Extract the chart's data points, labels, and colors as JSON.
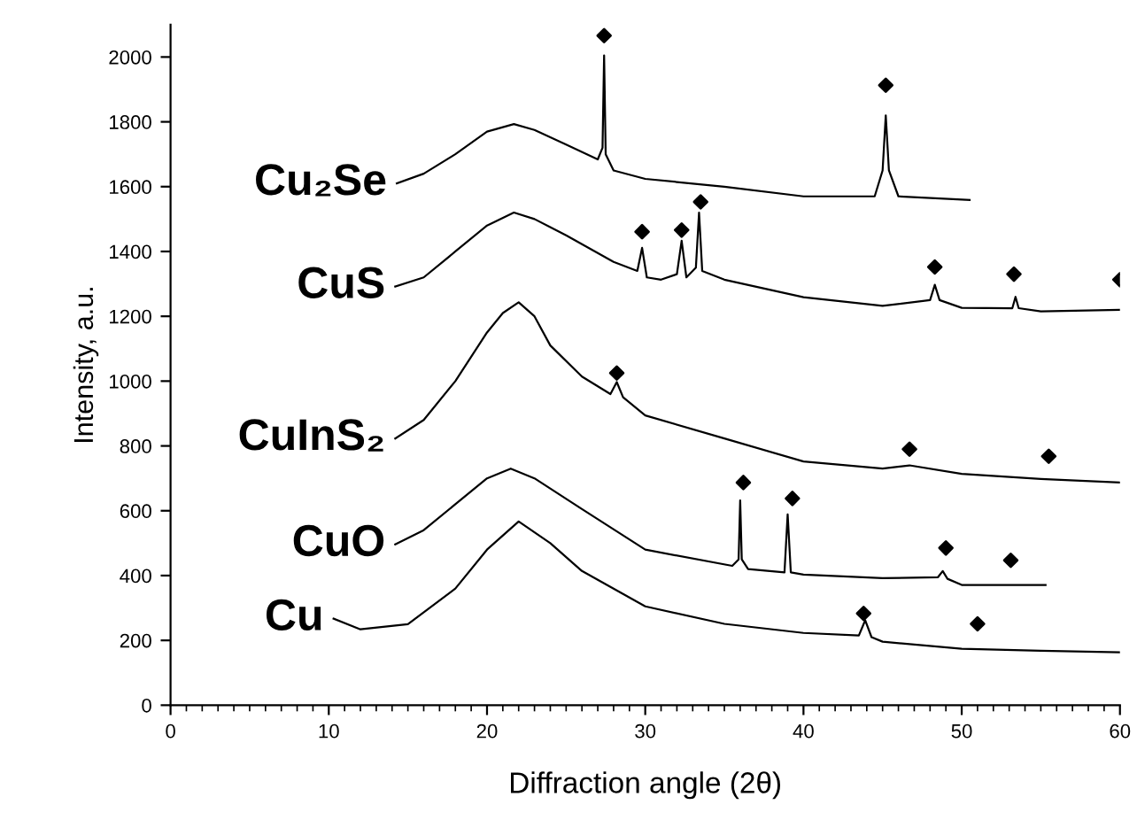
{
  "chart_data": {
    "type": "line",
    "xlabel": "Diffraction angle (2θ)",
    "ylabel": "Intensity, a.u.",
    "xlim": [
      0,
      60
    ],
    "ylim": [
      0,
      2100
    ],
    "xticks": [
      0,
      10,
      20,
      30,
      40,
      50,
      60
    ],
    "yticks": [
      0,
      200,
      400,
      600,
      800,
      1000,
      1200,
      1400,
      1600,
      1800,
      2000
    ],
    "grid": false,
    "legend": false,
    "marker": "none",
    "line_style": "solid",
    "series": [
      {
        "name": "Cu₂Se",
        "color": "#000000",
        "x": [
          14.3,
          16,
          18,
          20,
          21.7,
          23,
          25,
          27,
          27.3,
          27.4,
          27.5,
          28,
          30,
          35,
          40,
          44.5,
          45.0,
          45.2,
          45.4,
          46,
          50.5
        ],
        "values": [
          1610,
          1640,
          1700,
          1770,
          1793,
          1775,
          1730,
          1684,
          1720,
          2005,
          1700,
          1650,
          1624,
          1600,
          1570,
          1570,
          1650,
          1820,
          1650,
          1570,
          1559
        ]
      },
      {
        "name": "CuS",
        "color": "#000000",
        "x": [
          14.2,
          16,
          18,
          20,
          21.7,
          23,
          25,
          28,
          29.5,
          29.8,
          30.1,
          31,
          32.0,
          32.3,
          32.6,
          33.2,
          33.4,
          33.6,
          35,
          40,
          45,
          48.0,
          48.3,
          48.6,
          50,
          53.2,
          53.4,
          53.6,
          55,
          60
        ],
        "values": [
          1292,
          1320,
          1400,
          1480,
          1520,
          1500,
          1450,
          1368,
          1340,
          1411,
          1320,
          1313,
          1330,
          1433,
          1320,
          1350,
          1520,
          1340,
          1313,
          1259,
          1232,
          1250,
          1297,
          1250,
          1226,
          1225,
          1260,
          1225,
          1215,
          1220
        ]
      },
      {
        "name": "CuInS₂",
        "color": "#000000",
        "x": [
          14.2,
          16,
          18,
          20,
          21,
          22,
          23,
          24,
          26,
          27.8,
          28.2,
          28.6,
          30,
          35,
          40,
          45,
          46.7,
          50,
          55,
          60
        ],
        "values": [
          823,
          880,
          1000,
          1150,
          1210,
          1243,
          1200,
          1110,
          1014,
          960,
          997,
          950,
          894,
          823,
          752,
          730,
          740,
          714,
          698,
          687
        ]
      },
      {
        "name": "CuO",
        "color": "#000000",
        "x": [
          14.2,
          16,
          18,
          20,
          21.5,
          23,
          26,
          30,
          35.5,
          35.9,
          36.0,
          36.1,
          36.5,
          38.8,
          39.0,
          39.2,
          40,
          45,
          48.5,
          48.8,
          49.1,
          50,
          55.3
        ],
        "values": [
          496,
          540,
          620,
          700,
          730,
          700,
          605,
          480,
          430,
          450,
          632,
          450,
          420,
          410,
          589,
          410,
          403,
          392,
          395,
          414,
          390,
          371,
          371
        ]
      },
      {
        "name": "Cu",
        "color": "#000000",
        "x": [
          10.3,
          12,
          15,
          18,
          20,
          22,
          24,
          26,
          30,
          35,
          40,
          43.5,
          43.9,
          44.3,
          45,
          50,
          55,
          60
        ],
        "values": [
          267,
          234,
          250,
          360,
          480,
          567,
          500,
          414,
          305,
          251,
          223,
          215,
          262,
          210,
          196,
          174,
          168,
          163
        ]
      },
      {
        "type": "scatter",
        "marker": "diamond",
        "color": "#000000",
        "x": [
          27.4,
          45.2,
          29.8,
          32.3,
          33.5,
          48.3,
          53.3,
          60,
          28.2,
          46.7,
          55.5,
          36.2,
          39.3,
          49,
          53.1,
          43.8,
          51
        ],
        "values": [
          2066,
          1913,
          1461,
          1466,
          1553,
          1352,
          1330,
          1313,
          1025,
          790,
          768,
          687,
          638,
          485,
          447,
          283,
          251
        ]
      }
    ]
  }
}
